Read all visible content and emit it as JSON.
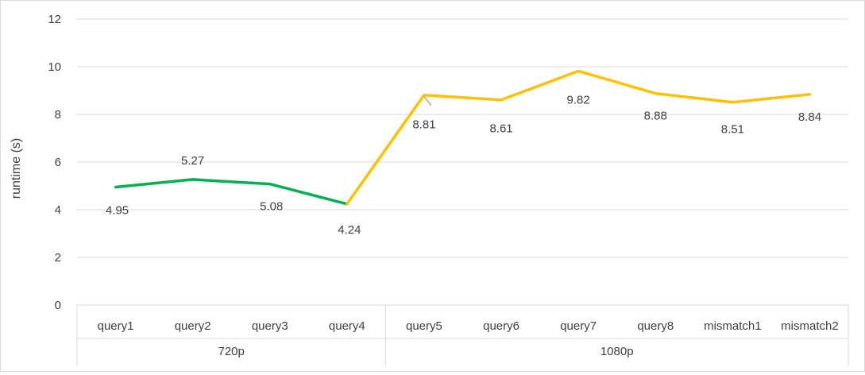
{
  "chart_data": {
    "type": "line",
    "ylabel": "runtime (s)",
    "ylim": [
      0,
      12
    ],
    "yticks": [
      0,
      2,
      4,
      6,
      8,
      10,
      12
    ],
    "grid": true,
    "categories": [
      "query1",
      "query2",
      "query3",
      "query4",
      "query5",
      "query6",
      "query7",
      "query8",
      "mismatch1",
      "mismatch2"
    ],
    "groups": [
      {
        "label": "720p",
        "categories": [
          "query1",
          "query2",
          "query3",
          "query4"
        ]
      },
      {
        "label": "1080p",
        "categories": [
          "query5",
          "query6",
          "query7",
          "query8",
          "mismatch1",
          "mismatch2"
        ]
      }
    ],
    "values": [
      4.95,
      5.27,
      5.08,
      4.24,
      8.81,
      8.61,
      9.82,
      8.88,
      8.51,
      8.84
    ],
    "value_labels": [
      "4.95",
      "5.27",
      "5.08",
      "4.24",
      "8.81",
      "8.61",
      "9.82",
      "8.88",
      "8.51",
      "8.84"
    ],
    "segments": [
      {
        "from": 0,
        "to": 3,
        "color": "#00b050"
      },
      {
        "from": 3,
        "to": 9,
        "color": "#ffc000"
      }
    ],
    "colors": {
      "grid": "#d9d9d9",
      "text": "#404040",
      "leader": "#a6a6a6"
    }
  }
}
